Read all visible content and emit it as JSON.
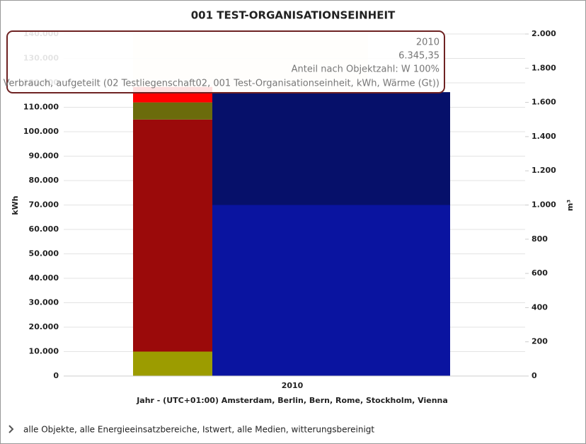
{
  "chart_data": {
    "type": "bar",
    "stacked": true,
    "title": "001 TEST-ORGANISATIONSEINHEIT",
    "categories": [
      "2010"
    ],
    "x_label": "Jahr - (UTC+01:00) Amsterdam, Berlin, Bern, Rome, Stockholm, Vienna",
    "y_label": "kWh",
    "y2_label": "m³",
    "grid": true,
    "ylim": [
      0,
      140000
    ],
    "yticks": [
      0,
      {
        "value": 10000,
        "label": "10.000"
      },
      {
        "value": 20000,
        "label": "20.000"
      },
      {
        "value": 30000,
        "label": "30.000"
      },
      {
        "value": 40000,
        "label": "40.000"
      },
      {
        "value": 50000,
        "label": "50.000"
      },
      {
        "value": 60000,
        "label": "60.000"
      },
      {
        "value": 70000,
        "label": "70.000"
      },
      {
        "value": 80000,
        "label": "80.000"
      },
      {
        "value": 90000,
        "label": "90.000"
      },
      {
        "value": 100000,
        "label": "100.000"
      },
      {
        "value": 110000,
        "label": "110.000"
      },
      {
        "value": 120000,
        "label": "120.000"
      },
      {
        "value": 130000,
        "label": "130.000"
      },
      {
        "value": 140000,
        "label": "140.000"
      }
    ],
    "y2lim": [
      0,
      2000
    ],
    "y2ticks": [
      0,
      200,
      400,
      600,
      800,
      {
        "value": 1000,
        "label": "1.000"
      },
      {
        "value": 1200,
        "label": "1.200"
      },
      {
        "value": 1400,
        "label": "1.400"
      },
      {
        "value": 1600,
        "label": "1.600"
      },
      {
        "value": 1800,
        "label": "1.800"
      },
      {
        "value": 2000,
        "label": "2.000"
      }
    ],
    "series": [
      {
        "color": "#9c9c00",
        "values": [
          10000
        ]
      },
      {
        "color": "#9b0a0a",
        "values": [
          95000
        ]
      },
      {
        "color": "#6b6b0b",
        "values": [
          7000
        ]
      },
      {
        "color": "#ff0000",
        "values": [
          6345.35
        ]
      },
      {
        "color": "#0a14a0",
        "values": [
          1000
        ],
        "axis": "y2"
      },
      {
        "color": "#06106a",
        "values": [
          660
        ],
        "axis": "y2"
      }
    ],
    "tooltip": {
      "category": "2010",
      "value_label": "6.345,35",
      "share": "Anteil nach Objektzahl: W 100%",
      "description": "Verbrauch, aufgeteilt (02 Testliegenschaft02, 001 Test-Organisationseinheit, kWh, Wärme (Gt))"
    }
  },
  "footer": "alle Objekte, alle Energieeinsatzbereiche, Istwert, alle Medien, witterungsbereinigt"
}
